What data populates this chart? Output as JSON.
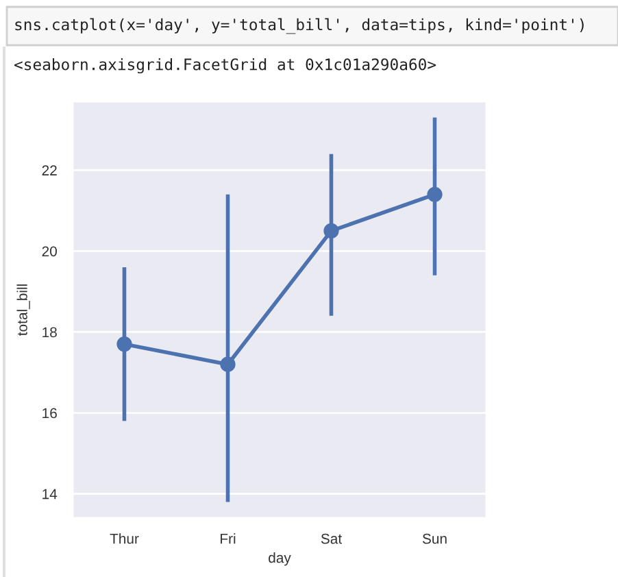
{
  "chart_data": {
    "type": "line",
    "xlabel": "day",
    "ylabel": "total_bill",
    "categories": [
      "Thur",
      "Fri",
      "Sat",
      "Sun"
    ],
    "series": [
      {
        "color": "#4c72b0",
        "values": [
          17.7,
          17.2,
          20.5,
          21.4
        ],
        "errors": [
          [
            15.8,
            19.6
          ],
          [
            13.8,
            21.4
          ],
          [
            18.4,
            22.4
          ],
          [
            19.4,
            23.3
          ]
        ]
      }
    ],
    "ylim": [
      13.4,
      23.7
    ],
    "yticks": [
      14,
      16,
      18,
      20,
      22
    ],
    "grid": "y",
    "marker": "circle",
    "line_style": "solid",
    "annotations": [
      "sns.catplot(x='day', y='total_bill', data=tips, kind='point')",
      "<seaborn.axisgrid.FacetGrid at 0x1c01a290a60>"
    ]
  }
}
